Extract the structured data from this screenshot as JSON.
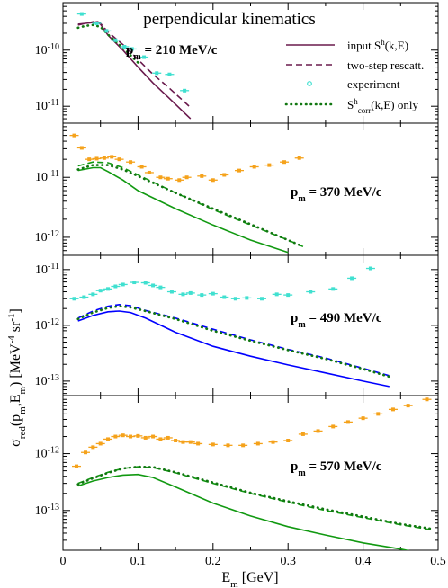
{
  "chart_data": {
    "type": "line",
    "title": "perpendicular kinematics",
    "xlabel": "E_m [GeV]",
    "ylabel": "σ_red(p_m,E_m) [MeV^-4 sr^-1]",
    "x_ticks": [
      "0",
      "0.1",
      "0.2",
      "0.3",
      "0.4",
      "0.5"
    ],
    "xlim": [
      0,
      0.5
    ],
    "y_scale": "log",
    "legend": {
      "placement": "top-right",
      "items": [
        {
          "key": "input",
          "main": "input S",
          "sup": "h",
          "tail": "(k,E)",
          "style": "solid"
        },
        {
          "key": "two",
          "main": "two-step rescatt.",
          "style": "dashed"
        },
        {
          "key": "exp",
          "main": "experiment",
          "style": "marker"
        },
        {
          "key": "corr",
          "main": "S",
          "sup": "h",
          "sub": "corr",
          "tail": "(k,E) only",
          "style": "dotted"
        }
      ]
    },
    "panels": [
      {
        "pm_label": "p",
        "pm_sub": "m",
        "pm_value": " = 210 MeV/c",
        "color": "#6a1a4d",
        "exp_color": "#40e0d0",
        "ylim": [
          5e-12,
          7e-10
        ],
        "yticks": [
          {
            "v": 1e-10,
            "m": "10",
            "e": "-10"
          },
          {
            "v": 1e-11,
            "m": "10",
            "e": "-11"
          }
        ],
        "input": [
          [
            0.02,
            2.9e-10
          ],
          [
            0.03,
            3e-10
          ],
          [
            0.04,
            3.1e-10
          ],
          [
            0.045,
            3.2e-10
          ],
          [
            0.05,
            2.9e-10
          ],
          [
            0.06,
            1.85e-10
          ],
          [
            0.08,
            1e-10
          ],
          [
            0.1,
            5e-11
          ],
          [
            0.12,
            2.6e-11
          ],
          [
            0.14,
            1.45e-11
          ],
          [
            0.17,
            6e-12
          ]
        ],
        "two": [
          [
            0.02,
            2.8e-10
          ],
          [
            0.03,
            3e-10
          ],
          [
            0.045,
            3.3e-10
          ],
          [
            0.05,
            3e-10
          ],
          [
            0.06,
            2.1e-10
          ],
          [
            0.08,
            1.25e-10
          ],
          [
            0.1,
            6.8e-11
          ],
          [
            0.12,
            3.7e-11
          ],
          [
            0.14,
            2.2e-11
          ],
          [
            0.17,
            9.5e-12
          ]
        ],
        "corr": [
          [
            0.02,
            2.5e-10
          ],
          [
            0.03,
            2.7e-10
          ],
          [
            0.04,
            2.8e-10
          ],
          [
            0.05,
            2.6e-10
          ],
          [
            0.06,
            1.9e-10
          ],
          [
            0.08,
            1.1e-10
          ],
          [
            0.1,
            6e-11
          ]
        ],
        "exp": [
          [
            0.025,
            4.4e-10
          ],
          [
            0.045,
            3e-10
          ],
          [
            0.058,
            2.2e-10
          ],
          [
            0.07,
            1.5e-10
          ],
          [
            0.082,
            1.15e-10
          ],
          [
            0.092,
            1.05e-10
          ],
          [
            0.108,
            7.5e-11
          ],
          [
            0.125,
            3.9e-11
          ],
          [
            0.142,
            3.7e-11
          ],
          [
            0.162,
            1.9e-11
          ]
        ]
      },
      {
        "pm_label": "p",
        "pm_sub": "m",
        "pm_value": " = 370 MeV/c",
        "color": "#119911",
        "exp_color": "#f5a21b",
        "ylim": [
          5e-13,
          8e-11
        ],
        "yticks": [
          {
            "v": 1e-11,
            "m": "10",
            "e": "-11"
          },
          {
            "v": 1e-12,
            "m": "10",
            "e": "-12"
          }
        ],
        "input": [
          [
            0.02,
            1.3e-11
          ],
          [
            0.04,
            1.45e-11
          ],
          [
            0.05,
            1.45e-11
          ],
          [
            0.06,
            1.25e-11
          ],
          [
            0.08,
            9e-12
          ],
          [
            0.1,
            6e-12
          ],
          [
            0.15,
            3e-12
          ],
          [
            0.2,
            1.6e-12
          ],
          [
            0.25,
            9e-13
          ],
          [
            0.3,
            5.6e-13
          ]
        ],
        "two": [
          [
            0.02,
            1.55e-11
          ],
          [
            0.04,
            1.8e-11
          ],
          [
            0.06,
            1.75e-11
          ],
          [
            0.08,
            1.45e-11
          ],
          [
            0.1,
            1.1e-11
          ],
          [
            0.15,
            5.5e-12
          ],
          [
            0.2,
            2.9e-12
          ],
          [
            0.25,
            1.6e-12
          ],
          [
            0.3,
            9e-13
          ],
          [
            0.32,
            7e-13
          ]
        ],
        "corr": [
          [
            0.02,
            1.35e-11
          ],
          [
            0.04,
            1.6e-11
          ],
          [
            0.06,
            1.6e-11
          ],
          [
            0.08,
            1.35e-11
          ],
          [
            0.1,
            1.05e-11
          ],
          [
            0.15,
            5.5e-12
          ],
          [
            0.2,
            3e-12
          ],
          [
            0.25,
            1.65e-12
          ],
          [
            0.3,
            9e-13
          ],
          [
            0.32,
            7e-13
          ]
        ],
        "exp": [
          [
            0.015,
            5e-11
          ],
          [
            0.025,
            3.1e-11
          ],
          [
            0.035,
            2e-11
          ],
          [
            0.045,
            2.05e-11
          ],
          [
            0.055,
            2.1e-11
          ],
          [
            0.065,
            2.2e-11
          ],
          [
            0.075,
            2e-11
          ],
          [
            0.09,
            1.8e-11
          ],
          [
            0.105,
            1.5e-11
          ],
          [
            0.115,
            1.2e-11
          ],
          [
            0.13,
            1e-11
          ],
          [
            0.14,
            9.5e-12
          ],
          [
            0.155,
            9e-12
          ],
          [
            0.165,
            1e-11
          ],
          [
            0.185,
            1.05e-11
          ],
          [
            0.2,
            9e-12
          ],
          [
            0.215,
            1.1e-11
          ],
          [
            0.235,
            1.3e-11
          ],
          [
            0.255,
            1.5e-11
          ],
          [
            0.275,
            1.6e-11
          ],
          [
            0.295,
            1.8e-11
          ],
          [
            0.315,
            2.1e-11
          ]
        ]
      },
      {
        "pm_label": "p",
        "pm_sub": "m",
        "pm_value": " = 490 MeV/c",
        "color": "#0000ff",
        "exp_color": "#40e0d0",
        "ylim": [
          5.5e-14,
          1.8e-11
        ],
        "yticks": [
          {
            "v": 1e-11,
            "m": "10",
            "e": "-11"
          },
          {
            "v": 1e-12,
            "m": "10",
            "e": "-12"
          },
          {
            "v": 1e-13,
            "m": "10",
            "e": "-13"
          }
        ],
        "input": [
          [
            0.02,
            1.2e-12
          ],
          [
            0.04,
            1.5e-12
          ],
          [
            0.06,
            1.75e-12
          ],
          [
            0.075,
            1.8e-12
          ],
          [
            0.09,
            1.7e-12
          ],
          [
            0.11,
            1.35e-12
          ],
          [
            0.15,
            7.5e-13
          ],
          [
            0.2,
            4.2e-13
          ],
          [
            0.25,
            2.8e-13
          ],
          [
            0.3,
            1.95e-13
          ],
          [
            0.35,
            1.4e-13
          ],
          [
            0.4,
            1e-13
          ],
          [
            0.435,
            8e-14
          ]
        ],
        "two": [
          [
            0.02,
            1.35e-12
          ],
          [
            0.04,
            1.8e-12
          ],
          [
            0.06,
            2.2e-12
          ],
          [
            0.075,
            2.35e-12
          ],
          [
            0.09,
            2.25e-12
          ],
          [
            0.11,
            1.85e-12
          ],
          [
            0.15,
            1.35e-12
          ],
          [
            0.2,
            8.5e-13
          ],
          [
            0.25,
            5.5e-13
          ],
          [
            0.3,
            3.7e-13
          ],
          [
            0.35,
            2.6e-13
          ],
          [
            0.4,
            1.7e-13
          ],
          [
            0.435,
            1.25e-13
          ]
        ],
        "corr": [
          [
            0.02,
            1.3e-12
          ],
          [
            0.04,
            1.7e-12
          ],
          [
            0.06,
            2.05e-12
          ],
          [
            0.075,
            2.2e-12
          ],
          [
            0.09,
            2.1e-12
          ],
          [
            0.11,
            1.8e-12
          ],
          [
            0.15,
            1.3e-12
          ],
          [
            0.2,
            8e-13
          ],
          [
            0.25,
            5.3e-13
          ],
          [
            0.3,
            3.6e-13
          ],
          [
            0.35,
            2.5e-13
          ],
          [
            0.4,
            1.65e-13
          ],
          [
            0.435,
            1.2e-13
          ]
        ],
        "exp": [
          [
            0.015,
            3e-12
          ],
          [
            0.028,
            3.2e-12
          ],
          [
            0.04,
            3.6e-12
          ],
          [
            0.05,
            4.2e-12
          ],
          [
            0.06,
            4.5e-12
          ],
          [
            0.07,
            5e-12
          ],
          [
            0.08,
            5.4e-12
          ],
          [
            0.095,
            5.9e-12
          ],
          [
            0.11,
            5.8e-12
          ],
          [
            0.12,
            5.2e-12
          ],
          [
            0.13,
            4.8e-12
          ],
          [
            0.145,
            4e-12
          ],
          [
            0.16,
            3.6e-12
          ],
          [
            0.17,
            3.8e-12
          ],
          [
            0.185,
            3.5e-12
          ],
          [
            0.2,
            3.7e-12
          ],
          [
            0.215,
            3.2e-12
          ],
          [
            0.23,
            3e-12
          ],
          [
            0.245,
            3.1e-12
          ],
          [
            0.265,
            3e-12
          ],
          [
            0.285,
            3.6e-12
          ],
          [
            0.3,
            3.5e-12
          ],
          [
            0.33,
            4e-12
          ],
          [
            0.36,
            4.5e-12
          ],
          [
            0.385,
            7e-12
          ],
          [
            0.41,
            1.05e-11
          ]
        ]
      },
      {
        "pm_label": "p",
        "pm_sub": "m",
        "pm_value": " = 570 MeV/c",
        "color": "#119911",
        "exp_color": "#f5a21b",
        "ylim": [
          2e-14,
          1.05e-11
        ],
        "yticks": [
          {
            "v": 1e-12,
            "m": "10",
            "e": "-12"
          },
          {
            "v": 1e-13,
            "m": "10",
            "e": "-13"
          }
        ],
        "input": [
          [
            0.02,
            2.7e-13
          ],
          [
            0.04,
            3.3e-13
          ],
          [
            0.06,
            3.8e-13
          ],
          [
            0.08,
            4.2e-13
          ],
          [
            0.1,
            4.3e-13
          ],
          [
            0.12,
            3.8e-13
          ],
          [
            0.15,
            2.6e-13
          ],
          [
            0.2,
            1.35e-13
          ],
          [
            0.25,
            8e-14
          ],
          [
            0.3,
            5.2e-14
          ],
          [
            0.35,
            3.7e-14
          ],
          [
            0.4,
            2.7e-14
          ],
          [
            0.45,
            2.1e-14
          ],
          [
            0.47,
            1.85e-14
          ]
        ],
        "two": [
          [
            0.02,
            3e-13
          ],
          [
            0.04,
            3.8e-13
          ],
          [
            0.06,
            4.7e-13
          ],
          [
            0.08,
            5.5e-13
          ],
          [
            0.1,
            5.9e-13
          ],
          [
            0.12,
            5.7e-13
          ],
          [
            0.15,
            4.6e-13
          ],
          [
            0.2,
            3e-13
          ],
          [
            0.25,
            2e-13
          ],
          [
            0.3,
            1.4e-13
          ],
          [
            0.35,
            1e-13
          ],
          [
            0.4,
            7.5e-14
          ],
          [
            0.45,
            5.6e-14
          ],
          [
            0.49,
            4.6e-14
          ]
        ],
        "corr": [
          [
            0.02,
            2.9e-13
          ],
          [
            0.04,
            3.7e-13
          ],
          [
            0.06,
            4.6e-13
          ],
          [
            0.08,
            5.5e-13
          ],
          [
            0.1,
            5.9e-13
          ],
          [
            0.12,
            5.8e-13
          ],
          [
            0.15,
            4.7e-13
          ],
          [
            0.2,
            3.1e-13
          ],
          [
            0.25,
            2.05e-13
          ],
          [
            0.3,
            1.45e-13
          ],
          [
            0.35,
            1.05e-13
          ],
          [
            0.4,
            7.8e-14
          ],
          [
            0.45,
            5.8e-14
          ],
          [
            0.49,
            4.8e-14
          ]
        ],
        "exp": [
          [
            0.018,
            6e-13
          ],
          [
            0.03,
            1.05e-12
          ],
          [
            0.04,
            1.3e-12
          ],
          [
            0.05,
            1.5e-12
          ],
          [
            0.06,
            1.8e-12
          ],
          [
            0.07,
            2e-12
          ],
          [
            0.08,
            2.1e-12
          ],
          [
            0.09,
            2e-12
          ],
          [
            0.1,
            2.05e-12
          ],
          [
            0.11,
            1.9e-12
          ],
          [
            0.12,
            2e-12
          ],
          [
            0.13,
            1.8e-12
          ],
          [
            0.14,
            1.9e-12
          ],
          [
            0.15,
            1.7e-12
          ],
          [
            0.16,
            1.6e-12
          ],
          [
            0.17,
            1.6e-12
          ],
          [
            0.18,
            1.5e-12
          ],
          [
            0.2,
            1.45e-12
          ],
          [
            0.22,
            1.4e-12
          ],
          [
            0.24,
            1.4e-12
          ],
          [
            0.26,
            1.5e-12
          ],
          [
            0.28,
            1.6e-12
          ],
          [
            0.3,
            1.7e-12
          ],
          [
            0.32,
            2.2e-12
          ],
          [
            0.34,
            2.5e-12
          ],
          [
            0.36,
            3e-12
          ],
          [
            0.38,
            3.6e-12
          ],
          [
            0.4,
            4.2e-12
          ],
          [
            0.42,
            5e-12
          ],
          [
            0.44,
            6e-12
          ],
          [
            0.46,
            7e-12
          ],
          [
            0.485,
            9e-12
          ]
        ]
      }
    ]
  }
}
